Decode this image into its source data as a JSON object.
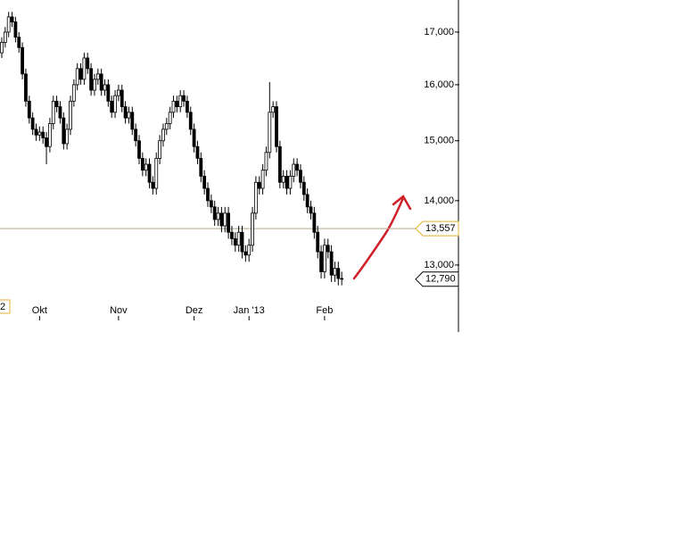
{
  "chart_data": {
    "type": "candlestick",
    "log_scale": true,
    "categories": [
      null,
      null,
      null,
      null,
      null,
      null,
      null,
      null,
      null,
      null,
      null,
      "Okt",
      null,
      null,
      null,
      null,
      null,
      null,
      null,
      null,
      null,
      null,
      null,
      null,
      null,
      null,
      null,
      null,
      null,
      null,
      null,
      null,
      null,
      null,
      "Nov",
      null,
      null,
      null,
      null,
      null,
      null,
      null,
      null,
      null,
      null,
      null,
      null,
      null,
      null,
      null,
      null,
      null,
      null,
      null,
      null,
      null,
      "Dez",
      null,
      null,
      null,
      null,
      null,
      null,
      null,
      null,
      null,
      null,
      null,
      null,
      null,
      null,
      null,
      "Jan '13",
      null,
      null,
      null,
      null,
      null,
      null,
      null,
      null,
      null,
      null,
      null,
      null,
      null,
      null,
      null,
      null,
      null,
      null,
      null,
      null,
      null,
      "Feb",
      null,
      null,
      null,
      null,
      null
    ],
    "open": [
      16600,
      16800,
      17000,
      17300,
      17200,
      16900,
      16700,
      16200,
      15700,
      15400,
      15200,
      15100,
      15150,
      15050,
      14900,
      15300,
      15700,
      15600,
      15400,
      14950,
      15200,
      15700,
      16000,
      16300,
      16100,
      16500,
      16300,
      15900,
      16100,
      16200,
      15900,
      16000,
      15700,
      15500,
      15800,
      15900,
      15600,
      15400,
      15500,
      15200,
      15000,
      14700,
      14500,
      14600,
      14300,
      14200,
      14700,
      15000,
      15200,
      15300,
      15500,
      15700,
      15600,
      15800,
      15700,
      15500,
      15200,
      14900,
      14700,
      14400,
      14200,
      14000,
      13900,
      13700,
      13800,
      13600,
      13800,
      13500,
      13400,
      13300,
      13500,
      13200,
      13150,
      13300,
      13800,
      14300,
      14200,
      14500,
      14800,
      15500,
      15600,
      14900,
      14300,
      14400,
      14200,
      14400,
      14600,
      14500,
      14300,
      14100,
      13900,
      13800,
      13500,
      13200,
      12900,
      13300,
      13200,
      12850,
      12950,
      12800
    ],
    "high": [
      16900,
      17100,
      17400,
      17400,
      17300,
      17000,
      16800,
      16300,
      15800,
      15500,
      15300,
      15250,
      15250,
      15150,
      15400,
      15800,
      15800,
      15700,
      15500,
      15300,
      15800,
      16100,
      16400,
      16400,
      16600,
      16600,
      16400,
      16200,
      16300,
      16300,
      16100,
      16100,
      15800,
      15900,
      16000,
      16000,
      15700,
      15600,
      15600,
      15300,
      15100,
      14800,
      14700,
      14700,
      14400,
      14800,
      15100,
      15300,
      15400,
      15600,
      15800,
      15800,
      15900,
      15900,
      15800,
      15600,
      15300,
      15000,
      14800,
      14500,
      14300,
      14100,
      14000,
      13900,
      13900,
      13900,
      13900,
      13600,
      13500,
      13600,
      13600,
      13300,
      13400,
      13900,
      14400,
      14400,
      14600,
      14900,
      16050,
      15700,
      15700,
      15000,
      14500,
      14500,
      14500,
      14700,
      14700,
      14600,
      14400,
      14200,
      14000,
      13900,
      13600,
      13300,
      13400,
      13400,
      13300,
      13050,
      13050,
      12900
    ],
    "low": [
      16500,
      16700,
      16900,
      17100,
      16800,
      16600,
      16100,
      15600,
      15300,
      15100,
      15000,
      15000,
      14950,
      14600,
      14800,
      15200,
      15500,
      15300,
      14850,
      14850,
      15100,
      15600,
      15900,
      16000,
      16000,
      16200,
      15800,
      15800,
      16000,
      15800,
      15800,
      15600,
      15400,
      15400,
      15700,
      15500,
      15300,
      15300,
      15100,
      14900,
      14600,
      14400,
      14400,
      14200,
      14100,
      14100,
      14600,
      14900,
      15100,
      15200,
      15400,
      15500,
      15500,
      15600,
      15400,
      15100,
      14800,
      14600,
      14300,
      14100,
      13900,
      13800,
      13600,
      13600,
      13500,
      13500,
      13400,
      13300,
      13200,
      13200,
      13100,
      13050,
      13050,
      13200,
      13700,
      14100,
      14100,
      14400,
      14700,
      15400,
      14800,
      14200,
      14200,
      14100,
      14100,
      14300,
      14400,
      14200,
      14000,
      13800,
      13700,
      13400,
      13100,
      12800,
      12800,
      13100,
      12750,
      12750,
      12700,
      12700
    ],
    "close": [
      16800,
      17000,
      17300,
      17200,
      16900,
      16700,
      16200,
      15700,
      15400,
      15200,
      15100,
      15150,
      15050,
      14900,
      15300,
      15700,
      15600,
      15400,
      14950,
      15200,
      15700,
      16000,
      16300,
      16100,
      16500,
      16300,
      15900,
      16100,
      16200,
      15900,
      16000,
      15700,
      15500,
      15800,
      15900,
      15600,
      15400,
      15500,
      15200,
      15000,
      14700,
      14500,
      14600,
      14300,
      14200,
      14700,
      15000,
      15200,
      15300,
      15500,
      15700,
      15600,
      15800,
      15700,
      15500,
      15200,
      14900,
      14700,
      14400,
      14200,
      14000,
      13900,
      13700,
      13800,
      13600,
      13800,
      13500,
      13400,
      13300,
      13500,
      13200,
      13150,
      13300,
      13800,
      14300,
      14200,
      14500,
      14800,
      15500,
      15600,
      14900,
      14300,
      14400,
      14200,
      14400,
      14600,
      14500,
      14300,
      14100,
      13900,
      13800,
      13500,
      13200,
      12900,
      13300,
      13200,
      12850,
      12950,
      12800,
      12790
    ],
    "ylim": [
      12035,
      17640
    ],
    "yticks": [
      {
        "value": 13000,
        "label": "13,000"
      },
      {
        "value": 14000,
        "label": "14,000"
      },
      {
        "value": 15000,
        "label": "15,000"
      },
      {
        "value": 16000,
        "label": "16,000"
      },
      {
        "value": 17000,
        "label": "17,000"
      }
    ],
    "reference_line": {
      "value": 13557,
      "label": "13,557",
      "color": "#e0b030"
    },
    "last_price": {
      "value": 12790,
      "label": "12,790"
    },
    "left_tag": "2"
  }
}
